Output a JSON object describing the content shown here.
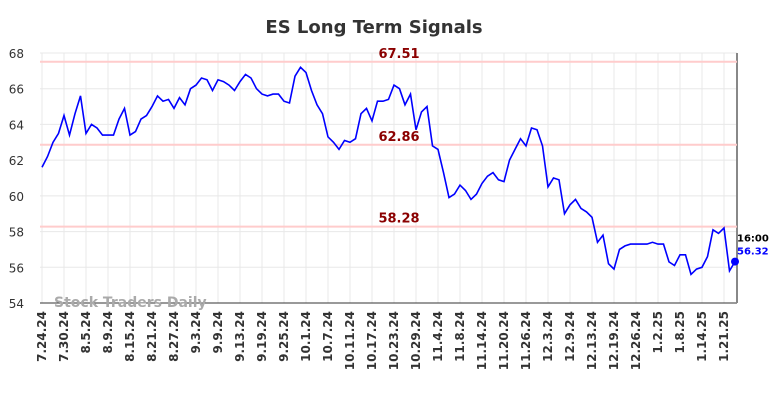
{
  "chart_data": {
    "type": "line",
    "title": "ES Long Term Signals",
    "categories": [
      "7.24.24",
      null,
      null,
      null,
      "7.30.24",
      null,
      null,
      null,
      "8.5.24",
      null,
      null,
      null,
      "8.9.24",
      null,
      null,
      null,
      "8.15.24",
      null,
      null,
      null,
      "8.21.24",
      null,
      null,
      null,
      "8.27.24",
      null,
      null,
      null,
      "9.3.24",
      null,
      null,
      null,
      "9.9.24",
      null,
      null,
      null,
      "9.13.24",
      null,
      null,
      null,
      "9.19.24",
      null,
      null,
      null,
      "9.25.24",
      null,
      null,
      null,
      "10.1.24",
      null,
      null,
      null,
      "10.7.24",
      null,
      null,
      null,
      "10.11.24",
      null,
      null,
      null,
      "10.17.24",
      null,
      null,
      null,
      "10.23.24",
      null,
      null,
      null,
      "10.29.24",
      null,
      null,
      null,
      "11.4.24",
      null,
      null,
      null,
      "11.8.24",
      null,
      null,
      null,
      "11.14.24",
      null,
      null,
      null,
      "11.20.24",
      null,
      null,
      null,
      "11.26.24",
      null,
      null,
      null,
      "12.3.24",
      null,
      null,
      null,
      "12.9.24",
      null,
      null,
      null,
      "12.13.24",
      null,
      null,
      null,
      "12.19.24",
      null,
      null,
      null,
      "12.26.24",
      null,
      null,
      null,
      "1.2.25",
      null,
      null,
      null,
      "1.8.25",
      null,
      null,
      null,
      "1.14.25",
      null,
      null,
      null,
      "1.21.25",
      null,
      null
    ],
    "values": [
      61.6,
      62.2,
      63.0,
      63.5,
      64.5,
      63.4,
      64.6,
      65.6,
      63.5,
      64.0,
      63.8,
      63.4,
      63.4,
      63.4,
      64.3,
      64.9,
      63.4,
      63.6,
      64.3,
      64.5,
      65.0,
      65.6,
      65.3,
      65.4,
      64.9,
      65.5,
      65.1,
      66.0,
      66.2,
      66.6,
      66.5,
      65.9,
      66.5,
      66.4,
      66.2,
      65.9,
      66.4,
      66.8,
      66.6,
      66.0,
      65.7,
      65.6,
      65.7,
      65.7,
      65.3,
      65.2,
      66.7,
      67.2,
      66.9,
      65.9,
      65.1,
      64.6,
      63.3,
      63.0,
      62.6,
      63.1,
      63.0,
      63.2,
      64.6,
      64.9,
      64.2,
      65.3,
      65.3,
      65.4,
      66.2,
      66.0,
      65.1,
      65.7,
      63.7,
      64.7,
      65.0,
      62.8,
      62.6,
      61.3,
      59.9,
      60.1,
      60.6,
      60.3,
      59.8,
      60.1,
      60.7,
      61.1,
      61.3,
      60.9,
      60.8,
      62.0,
      62.6,
      63.2,
      62.8,
      63.8,
      63.7,
      62.8,
      60.5,
      61.0,
      60.9,
      59.0,
      59.5,
      59.8,
      59.3,
      59.1,
      58.8,
      57.4,
      57.8,
      56.2,
      55.9,
      57.0,
      57.2,
      57.3,
      57.3,
      57.3,
      57.3,
      57.4,
      57.3,
      57.3,
      56.3,
      56.1,
      56.7,
      56.7,
      55.6,
      55.9,
      56.0,
      56.6,
      58.1,
      57.9,
      58.2,
      55.8,
      56.32
    ],
    "color": "#0000ff",
    "ylim": [
      54,
      68
    ],
    "yticks": [
      54,
      56,
      58,
      60,
      62,
      64,
      66,
      68
    ],
    "grid": true,
    "hlines": [
      67.51,
      62.86,
      58.28
    ],
    "hline_color": "#ffcccc",
    "hline_label_color": "#8b0000",
    "last_time": "16:00",
    "watermark": "Stock Traders Daily"
  }
}
